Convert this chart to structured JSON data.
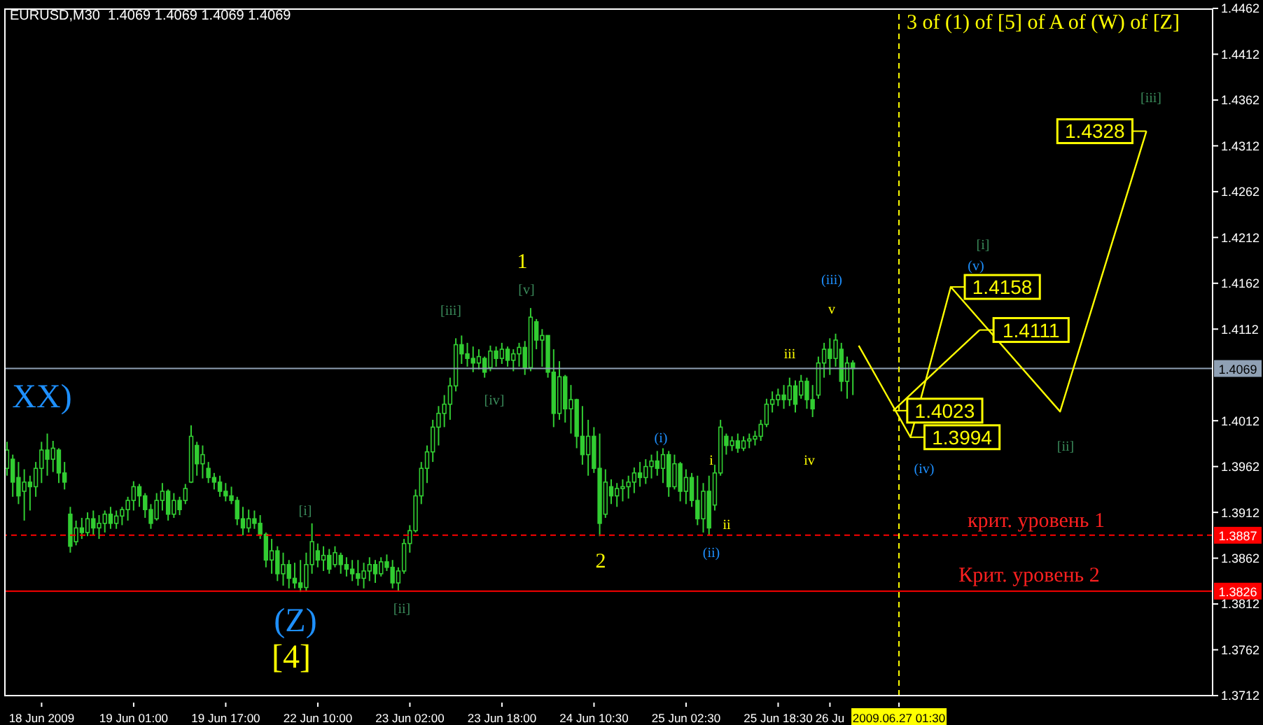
{
  "chart_data": {
    "type": "candlestick",
    "title": "EURUSD,M30  1.4069 1.4069 1.4069 1.4069",
    "subtitle": "3 of (1) of [5] of A of (W) of [Z]",
    "categories": [
      null,
      null,
      null,
      null,
      null,
      null,
      "18 Jun 2009",
      null,
      null,
      null,
      null,
      null,
      null,
      null,
      null,
      null,
      null,
      null,
      null,
      null,
      null,
      null,
      "19 Jun 01:00",
      null,
      null,
      null,
      null,
      null,
      null,
      null,
      null,
      null,
      null,
      null,
      null,
      null,
      null,
      null,
      "19 Jun 17:00",
      null,
      null,
      null,
      null,
      null,
      null,
      null,
      null,
      null,
      null,
      null,
      null,
      null,
      null,
      null,
      "22 Jun 10:00",
      null,
      null,
      null,
      null,
      null,
      null,
      null,
      null,
      null,
      null,
      null,
      null,
      null,
      null,
      null,
      "23 Jun 02:00",
      null,
      null,
      null,
      null,
      null,
      null,
      null,
      null,
      null,
      null,
      null,
      null,
      null,
      null,
      null,
      "23 Jun 18:00",
      null,
      null,
      null,
      null,
      null,
      null,
      null,
      null,
      null,
      null,
      null,
      null,
      null,
      null,
      null,
      "24 Jun 10:30",
      null,
      null,
      null,
      null,
      null,
      null,
      null,
      null,
      null,
      null,
      null,
      null,
      null,
      null,
      null,
      "25 Jun 02:30",
      null,
      null,
      null,
      null,
      null,
      null,
      null,
      null,
      null,
      null,
      null,
      null,
      null,
      null,
      null,
      "25 Jun 18:30",
      null,
      null,
      null,
      null,
      null,
      null,
      null,
      null,
      "26 Ju",
      null,
      null,
      null,
      null,
      null,
      null,
      null,
      null,
      null,
      null,
      null,
      "2009.06.27 01:30",
      null,
      null,
      null,
      null,
      null,
      null,
      null,
      null,
      null,
      null,
      null,
      null,
      null,
      null,
      null,
      null,
      null,
      null,
      null,
      null,
      null,
      null,
      null,
      null,
      null,
      null,
      null,
      null,
      null,
      null,
      null,
      null,
      null,
      null,
      null,
      null,
      null,
      null,
      null,
      null,
      null,
      null,
      null,
      null,
      null,
      null,
      null,
      null,
      null,
      null,
      null,
      null,
      null,
      null
    ],
    "color": "#32cd32",
    "ohlc": [
      [
        1.396,
        1.3989,
        1.3952,
        1.398
      ],
      [
        1.397,
        1.3975,
        1.3929,
        1.3945
      ],
      [
        1.395,
        1.3967,
        1.3921,
        1.393
      ],
      [
        1.3935,
        1.3959,
        1.3903,
        1.3945
      ],
      [
        1.3945,
        1.3952,
        1.3914,
        1.394
      ],
      [
        1.394,
        1.3967,
        1.3929,
        1.396
      ],
      [
        1.396,
        1.3989,
        1.3944,
        1.398
      ],
      [
        1.398,
        1.3998,
        1.3952,
        1.397
      ],
      [
        1.397,
        1.399,
        1.3956,
        1.3982
      ],
      [
        1.398,
        1.3982,
        1.3944,
        1.3955
      ],
      [
        1.3955,
        1.3967,
        1.3937,
        1.3945
      ],
      [
        1.391,
        1.3918,
        1.3868,
        1.3875
      ],
      [
        1.388,
        1.3903,
        1.3876,
        1.3895
      ],
      [
        1.3895,
        1.3906,
        1.3883,
        1.389
      ],
      [
        1.389,
        1.3912,
        1.3886,
        1.3905
      ],
      [
        1.3905,
        1.3914,
        1.3887,
        1.3895
      ],
      [
        1.3895,
        1.3909,
        1.3883,
        1.39
      ],
      [
        1.39,
        1.3914,
        1.389,
        1.391
      ],
      [
        1.391,
        1.3918,
        1.3894,
        1.39
      ],
      [
        1.39,
        1.3914,
        1.3894,
        1.3908
      ],
      [
        1.3908,
        1.3918,
        1.3898,
        1.3915
      ],
      [
        1.3915,
        1.3929,
        1.3903,
        1.3925
      ],
      [
        1.3925,
        1.3946,
        1.3914,
        1.394
      ],
      [
        1.394,
        1.3943,
        1.3918,
        1.393
      ],
      [
        1.393,
        1.3933,
        1.3906,
        1.3915
      ],
      [
        1.3915,
        1.3921,
        1.3894,
        1.39
      ],
      [
        1.3905,
        1.3933,
        1.3903,
        1.3925
      ],
      [
        1.3925,
        1.3944,
        1.3914,
        1.3935
      ],
      [
        1.3935,
        1.3937,
        1.3903,
        1.391
      ],
      [
        1.391,
        1.3933,
        1.3906,
        1.3925
      ],
      [
        1.3925,
        1.3929,
        1.3909,
        1.3915
      ],
      [
        1.3925,
        1.3943,
        1.3921,
        1.3938
      ],
      [
        1.3945,
        1.4007,
        1.3944,
        1.3995
      ],
      [
        1.3985,
        1.3989,
        1.3952,
        1.3965
      ],
      [
        1.3965,
        1.3985,
        1.3949,
        1.3975
      ],
      [
        1.396,
        1.3967,
        1.3944,
        1.395
      ],
      [
        1.395,
        1.3955,
        1.3937,
        1.3945
      ],
      [
        1.3945,
        1.3952,
        1.3929,
        1.3935
      ],
      [
        1.3935,
        1.3944,
        1.3924,
        1.393
      ],
      [
        1.393,
        1.394,
        1.3921,
        1.3925
      ],
      [
        1.3925,
        1.3929,
        1.3898,
        1.3905
      ],
      [
        1.3905,
        1.3918,
        1.3887,
        1.3895
      ],
      [
        1.3895,
        1.3915,
        1.389,
        1.3905
      ],
      [
        1.3905,
        1.3914,
        1.3894,
        1.39
      ],
      [
        1.39,
        1.3909,
        1.3883,
        1.3888
      ],
      [
        1.3888,
        1.389,
        1.3852,
        1.386
      ],
      [
        1.386,
        1.3883,
        1.3845,
        1.387
      ],
      [
        1.387,
        1.3875,
        1.3837,
        1.3845
      ],
      [
        1.3845,
        1.3868,
        1.3832,
        1.3855
      ],
      [
        1.3855,
        1.386,
        1.3829,
        1.384
      ],
      [
        1.384,
        1.3857,
        1.3829,
        1.3835
      ],
      [
        1.3835,
        1.386,
        1.3825,
        1.383
      ],
      [
        1.383,
        1.3868,
        1.3826,
        1.3855
      ],
      [
        1.3855,
        1.39,
        1.3845,
        1.388
      ],
      [
        1.387,
        1.3878,
        1.3852,
        1.386
      ],
      [
        1.386,
        1.3875,
        1.3848,
        1.3865
      ],
      [
        1.3865,
        1.3872,
        1.3845,
        1.385
      ],
      [
        1.3855,
        1.3875,
        1.3852,
        1.3868
      ],
      [
        1.3865,
        1.3868,
        1.3845,
        1.3855
      ],
      [
        1.3855,
        1.3863,
        1.3842,
        1.385
      ],
      [
        1.385,
        1.386,
        1.3837,
        1.3845
      ],
      [
        1.3845,
        1.386,
        1.3832,
        1.384
      ],
      [
        1.384,
        1.3857,
        1.3829,
        1.3848
      ],
      [
        1.3848,
        1.3863,
        1.3837,
        1.3855
      ],
      [
        1.3855,
        1.386,
        1.3835,
        1.3845
      ],
      [
        1.3845,
        1.3863,
        1.3842,
        1.3858
      ],
      [
        1.3858,
        1.3866,
        1.3848,
        1.3852
      ],
      [
        1.3852,
        1.386,
        1.3829,
        1.3835
      ],
      [
        1.3835,
        1.3852,
        1.3826,
        1.3848
      ],
      [
        1.3848,
        1.3883,
        1.3845,
        1.3878
      ],
      [
        1.3878,
        1.3898,
        1.3868,
        1.3892
      ],
      [
        1.3892,
        1.3937,
        1.389,
        1.393
      ],
      [
        1.393,
        1.3967,
        1.3921,
        1.396
      ],
      [
        1.396,
        1.3985,
        1.3944,
        1.3978
      ],
      [
        1.3978,
        1.4013,
        1.3967,
        1.4005
      ],
      [
        1.4005,
        1.4028,
        1.3985,
        1.402
      ],
      [
        1.402,
        1.404,
        1.4005,
        1.403
      ],
      [
        1.403,
        1.4059,
        1.4013,
        1.405
      ],
      [
        1.405,
        1.4102,
        1.4044,
        1.4095
      ],
      [
        1.4095,
        1.4105,
        1.4074,
        1.4085
      ],
      [
        1.4085,
        1.4097,
        1.4071,
        1.408
      ],
      [
        1.408,
        1.4093,
        1.4065,
        1.4075
      ],
      [
        1.4075,
        1.409,
        1.4068,
        1.4082
      ],
      [
        1.408,
        1.4082,
        1.4059,
        1.4065
      ],
      [
        1.407,
        1.4094,
        1.4066,
        1.4088
      ],
      [
        1.4088,
        1.4093,
        1.4071,
        1.408
      ],
      [
        1.408,
        1.4097,
        1.4074,
        1.409
      ],
      [
        1.409,
        1.4093,
        1.4071,
        1.4078
      ],
      [
        1.4078,
        1.409,
        1.4066,
        1.4085
      ],
      [
        1.4085,
        1.4097,
        1.4071,
        1.4092
      ],
      [
        1.4092,
        1.4099,
        1.4062,
        1.407
      ],
      [
        1.407,
        1.4135,
        1.4066,
        1.4125
      ],
      [
        1.412,
        1.4123,
        1.409,
        1.41
      ],
      [
        1.41,
        1.4112,
        1.4071,
        1.4105
      ],
      [
        1.4105,
        1.4105,
        1.4059,
        1.4065
      ],
      [
        1.4065,
        1.409,
        1.4005,
        1.402
      ],
      [
        1.402,
        1.4077,
        1.4013,
        1.406
      ],
      [
        1.406,
        1.4062,
        1.401,
        1.4025
      ],
      [
        1.4025,
        1.4051,
        1.3998,
        1.4035
      ],
      [
        1.4035,
        1.4036,
        1.3982,
        1.3995
      ],
      [
        1.3995,
        1.4028,
        1.3964,
        1.3975
      ],
      [
        1.3975,
        1.4013,
        1.3952,
        1.3995
      ],
      [
        1.3995,
        1.4005,
        1.3955,
        1.396
      ],
      [
        1.396,
        1.3998,
        1.3886,
        1.39
      ],
      [
        1.391,
        1.3959,
        1.3906,
        1.3945
      ],
      [
        1.394,
        1.3948,
        1.3921,
        1.393
      ],
      [
        1.393,
        1.3944,
        1.3918,
        1.3938
      ],
      [
        1.3938,
        1.3948,
        1.3924,
        1.394
      ],
      [
        1.394,
        1.3952,
        1.3927,
        1.3945
      ],
      [
        1.3945,
        1.3961,
        1.3933,
        1.3955
      ],
      [
        1.3955,
        1.3967,
        1.394,
        1.395
      ],
      [
        1.395,
        1.397,
        1.3943,
        1.3962
      ],
      [
        1.3962,
        1.3975,
        1.3949,
        1.3968
      ],
      [
        1.3968,
        1.3979,
        1.3952,
        1.396
      ],
      [
        1.396,
        1.3982,
        1.3944,
        1.3975
      ],
      [
        1.3975,
        1.3979,
        1.3929,
        1.394
      ],
      [
        1.394,
        1.3975,
        1.3937,
        1.3965
      ],
      [
        1.3965,
        1.3967,
        1.3924,
        1.3935
      ],
      [
        1.3935,
        1.3959,
        1.3921,
        1.395
      ],
      [
        1.395,
        1.3955,
        1.3918,
        1.3925
      ],
      [
        1.3925,
        1.3952,
        1.3898,
        1.3905
      ],
      [
        1.3905,
        1.3944,
        1.389,
        1.3935
      ],
      [
        1.3935,
        1.3952,
        1.3887,
        1.3895
      ],
      [
        1.392,
        1.3964,
        1.3914,
        1.3955
      ],
      [
        1.3955,
        1.4013,
        1.3952,
        1.4005
      ],
      [
        1.3995,
        1.3998,
        1.3975,
        1.3985
      ],
      [
        1.3985,
        1.3995,
        1.3979,
        1.399
      ],
      [
        1.399,
        1.3998,
        1.3977,
        1.3982
      ],
      [
        1.3982,
        1.3995,
        1.3979,
        1.399
      ],
      [
        1.399,
        1.3998,
        1.3982,
        1.3992
      ],
      [
        1.3992,
        1.4001,
        1.3985,
        1.3995
      ],
      [
        1.3995,
        1.4013,
        1.399,
        1.4008
      ],
      [
        1.4008,
        1.4036,
        1.4005,
        1.403
      ],
      [
        1.403,
        1.4044,
        1.4021,
        1.4035
      ],
      [
        1.4035,
        1.4047,
        1.4028,
        1.404
      ],
      [
        1.404,
        1.4051,
        1.4025,
        1.4035
      ],
      [
        1.4035,
        1.4059,
        1.4028,
        1.405
      ],
      [
        1.405,
        1.4056,
        1.4021,
        1.403
      ],
      [
        1.404,
        1.4062,
        1.4036,
        1.4055
      ],
      [
        1.4055,
        1.4059,
        1.4025,
        1.4035
      ],
      [
        1.4035,
        1.4051,
        1.4016,
        1.4025
      ],
      [
        1.404,
        1.4082,
        1.4036,
        1.4075
      ],
      [
        1.4075,
        1.4097,
        1.4059,
        1.409
      ],
      [
        1.409,
        1.4102,
        1.4062,
        1.408
      ],
      [
        1.408,
        1.4107,
        1.4071,
        1.41
      ],
      [
        1.409,
        1.4097,
        1.4044,
        1.4055
      ],
      [
        1.4055,
        1.4082,
        1.4036,
        1.4075
      ],
      [
        1.4075,
        1.4078,
        1.404,
        1.4069
      ],
      null,
      null,
      null,
      null,
      null,
      null,
      null,
      null,
      null,
      null,
      null,
      null,
      null,
      null,
      null,
      null,
      null,
      null,
      null,
      null,
      null,
      null,
      null,
      null,
      null,
      null,
      null,
      null,
      null,
      null,
      null,
      null,
      null,
      null,
      null,
      null,
      null,
      null,
      null,
      null,
      null,
      null,
      null,
      null,
      null,
      null,
      null,
      null,
      null,
      null,
      null,
      null,
      null,
      null,
      null,
      null,
      null,
      null,
      null,
      null,
      null,
      null
    ],
    "series": [
      {
        "type": "line",
        "color": "#ffff00",
        "values": [
          null,
          null,
          null,
          null,
          null,
          null,
          null,
          null,
          null,
          null,
          null,
          null,
          null,
          null,
          null,
          null,
          null,
          null,
          null,
          null,
          null,
          null,
          null,
          null,
          null,
          null,
          null,
          null,
          null,
          null,
          null,
          null,
          null,
          null,
          null,
          null,
          null,
          null,
          null,
          null,
          null,
          null,
          null,
          null,
          null,
          null,
          null,
          null,
          null,
          null,
          null,
          null,
          null,
          null,
          null,
          null,
          null,
          null,
          null,
          null,
          null,
          null,
          null,
          null,
          null,
          null,
          null,
          null,
          null,
          null,
          null,
          null,
          null,
          null,
          null,
          null,
          null,
          null,
          null,
          null,
          null,
          null,
          null,
          null,
          null,
          null,
          null,
          null,
          null,
          null,
          null,
          null,
          null,
          null,
          null,
          null,
          null,
          null,
          null,
          null,
          null,
          null,
          null,
          null,
          null,
          null,
          null,
          null,
          null,
          null,
          null,
          null,
          null,
          null,
          null,
          null,
          null,
          null,
          null,
          null,
          null,
          null,
          null,
          null,
          null,
          null,
          null,
          null,
          null,
          null,
          null,
          null,
          null,
          null,
          null,
          null,
          null,
          null,
          null,
          null,
          null,
          null,
          null,
          null,
          null,
          null,
          null,
          null,
          1.4094,
          null,
          null,
          null,
          null,
          null,
          null,
          null,
          null,
          1.3994,
          null,
          null,
          null,
          null,
          null,
          null,
          1.4158,
          null,
          null,
          null,
          null,
          null,
          null,
          null,
          null,
          null,
          null,
          null,
          null,
          null,
          null,
          null,
          null,
          null,
          null,
          1.4022,
          null,
          null,
          null,
          null,
          null,
          null,
          null,
          null,
          null,
          null,
          null,
          null,
          null,
          null,
          1.4328,
          null,
          null,
          null,
          null,
          null,
          null,
          null,
          null,
          null,
          null,
          null
        ],
        "value_labels": [
          null,
          null,
          null,
          null,
          null,
          null,
          null,
          null,
          null,
          null,
          null,
          null,
          null,
          null,
          null,
          null,
          null,
          null,
          null,
          null,
          null,
          null,
          null,
          null,
          null,
          null,
          null,
          null,
          null,
          null,
          null,
          null,
          null,
          null,
          null,
          null,
          null,
          null,
          null,
          null,
          null,
          null,
          null,
          null,
          null,
          null,
          null,
          null,
          null,
          null,
          null,
          null,
          null,
          null,
          null,
          null,
          null,
          null,
          null,
          null,
          null,
          null,
          null,
          null,
          null,
          null,
          null,
          null,
          null,
          null,
          null,
          null,
          null,
          null,
          null,
          null,
          null,
          null,
          null,
          null,
          null,
          null,
          null,
          null,
          null,
          null,
          null,
          null,
          null,
          null,
          null,
          null,
          null,
          null,
          null,
          null,
          null,
          null,
          null,
          null,
          null,
          null,
          null,
          null,
          null,
          null,
          null,
          null,
          null,
          null,
          null,
          null,
          null,
          null,
          null,
          null,
          null,
          null,
          null,
          null,
          null,
          null,
          null,
          null,
          null,
          null,
          null,
          null,
          null,
          null,
          null,
          null,
          null,
          null,
          null,
          null,
          null,
          null,
          null,
          null,
          null,
          null,
          null,
          null,
          null,
          null,
          null,
          null,
          null,
          null,
          null,
          null,
          null,
          null,
          null,
          null,
          null,
          "1.3994",
          null,
          null,
          null,
          null,
          null,
          null,
          "1.4158",
          null,
          null,
          null,
          null,
          null,
          null,
          null,
          null,
          null,
          null,
          null,
          null,
          null,
          null,
          null,
          null,
          null,
          null,
          null,
          null,
          null,
          null,
          null,
          null,
          null,
          null,
          null,
          null,
          null,
          null,
          null,
          null,
          null,
          "1.4328",
          null,
          null,
          null,
          null,
          null,
          null,
          null,
          null,
          null,
          null,
          null
        ]
      },
      {
        "type": "line",
        "color": "#ffff00",
        "values": [
          null,
          null,
          null,
          null,
          null,
          null,
          null,
          null,
          null,
          null,
          null,
          null,
          null,
          null,
          null,
          null,
          null,
          null,
          null,
          null,
          null,
          null,
          null,
          null,
          null,
          null,
          null,
          null,
          null,
          null,
          null,
          null,
          null,
          null,
          null,
          null,
          null,
          null,
          null,
          null,
          null,
          null,
          null,
          null,
          null,
          null,
          null,
          null,
          null,
          null,
          null,
          null,
          null,
          null,
          null,
          null,
          null,
          null,
          null,
          null,
          null,
          null,
          null,
          null,
          null,
          null,
          null,
          null,
          null,
          null,
          null,
          null,
          null,
          null,
          null,
          null,
          null,
          null,
          null,
          null,
          null,
          null,
          null,
          null,
          null,
          null,
          null,
          null,
          null,
          null,
          null,
          null,
          null,
          null,
          null,
          null,
          null,
          null,
          null,
          null,
          null,
          null,
          null,
          null,
          null,
          null,
          null,
          null,
          null,
          null,
          null,
          null,
          null,
          null,
          null,
          null,
          null,
          null,
          null,
          null,
          null,
          null,
          null,
          null,
          null,
          null,
          null,
          null,
          null,
          null,
          null,
          null,
          null,
          null,
          null,
          null,
          null,
          null,
          null,
          null,
          null,
          null,
          null,
          null,
          null,
          null,
          null,
          null,
          null,
          null,
          null,
          null,
          null,
          null,
          1.4023,
          null,
          null,
          null,
          null,
          null,
          null,
          null,
          null,
          null,
          null,
          null,
          null,
          null,
          null,
          1.4111,
          null,
          null,
          null,
          null,
          null,
          null,
          null,
          null,
          null,
          null,
          null,
          null,
          null,
          null,
          null,
          null,
          null,
          null,
          null,
          null,
          null,
          null,
          null,
          null,
          null,
          null,
          null,
          null,
          null,
          null,
          null,
          null,
          null,
          null,
          null,
          null,
          null,
          null,
          null,
          null
        ],
        "value_labels": [
          null,
          null,
          null,
          null,
          null,
          null,
          null,
          null,
          null,
          null,
          null,
          null,
          null,
          null,
          null,
          null,
          null,
          null,
          null,
          null,
          null,
          null,
          null,
          null,
          null,
          null,
          null,
          null,
          null,
          null,
          null,
          null,
          null,
          null,
          null,
          null,
          null,
          null,
          null,
          null,
          null,
          null,
          null,
          null,
          null,
          null,
          null,
          null,
          null,
          null,
          null,
          null,
          null,
          null,
          null,
          null,
          null,
          null,
          null,
          null,
          null,
          null,
          null,
          null,
          null,
          null,
          null,
          null,
          null,
          null,
          null,
          null,
          null,
          null,
          null,
          null,
          null,
          null,
          null,
          null,
          null,
          null,
          null,
          null,
          null,
          null,
          null,
          null,
          null,
          null,
          null,
          null,
          null,
          null,
          null,
          null,
          null,
          null,
          null,
          null,
          null,
          null,
          null,
          null,
          null,
          null,
          null,
          null,
          null,
          null,
          null,
          null,
          null,
          null,
          null,
          null,
          null,
          null,
          null,
          null,
          null,
          null,
          null,
          null,
          null,
          null,
          null,
          null,
          null,
          null,
          null,
          null,
          null,
          null,
          null,
          null,
          null,
          null,
          null,
          null,
          null,
          null,
          null,
          null,
          null,
          null,
          null,
          null,
          null,
          null,
          null,
          null,
          null,
          null,
          "1.4023",
          null,
          null,
          null,
          null,
          null,
          null,
          null,
          null,
          null,
          null,
          null,
          null,
          null,
          null,
          "1.4111",
          null,
          null,
          null,
          null,
          null,
          null,
          null,
          null,
          null,
          null,
          null,
          null,
          null,
          null,
          null,
          null,
          null,
          null,
          null,
          null,
          null,
          null,
          null,
          null,
          null,
          null,
          null,
          null,
          null,
          null,
          null,
          null,
          null,
          null,
          null,
          null,
          null,
          null,
          null,
          null
        ]
      }
    ],
    "ylim": [
      1.3712,
      1.4462
    ],
    "yticks": [
      1.3712,
      1.3762,
      1.3812,
      1.3862,
      1.3912,
      1.3962,
      1.4012,
      1.4112,
      1.4162,
      1.4212,
      1.4262,
      1.4312,
      1.4362,
      1.4412,
      1.4462
    ],
    "ref_lines": [
      {
        "axis": "y",
        "value": 1.4069,
        "label": "1.4069",
        "color": "#8fa0b4",
        "line_style": "solid"
      },
      {
        "axis": "y",
        "value": 1.3887,
        "label": "1.3887",
        "color": "#ff0000",
        "line_style": "dashed"
      },
      {
        "axis": "y",
        "value": 1.3826,
        "label": "1.3826",
        "color": "#ff0000",
        "line_style": "solid"
      },
      {
        "axis": "x",
        "value": "2009.06.27 01:30",
        "color": "#ffff00",
        "line_style": "dashed"
      }
    ],
    "annotations": [
      "XX)",
      "[i]",
      "(Z)",
      "[4]",
      "[ii]",
      "[iii]",
      "1",
      "[v]",
      "[iv]",
      "2",
      "(i)",
      "i",
      "ii",
      "(ii)",
      "iii",
      "iv",
      "v",
      "(iii)",
      "(iv)",
      "(v)",
      "[i]",
      "[ii]",
      "[iii]",
      "крит. уровень 1",
      "Крит. уровень 2"
    ]
  }
}
